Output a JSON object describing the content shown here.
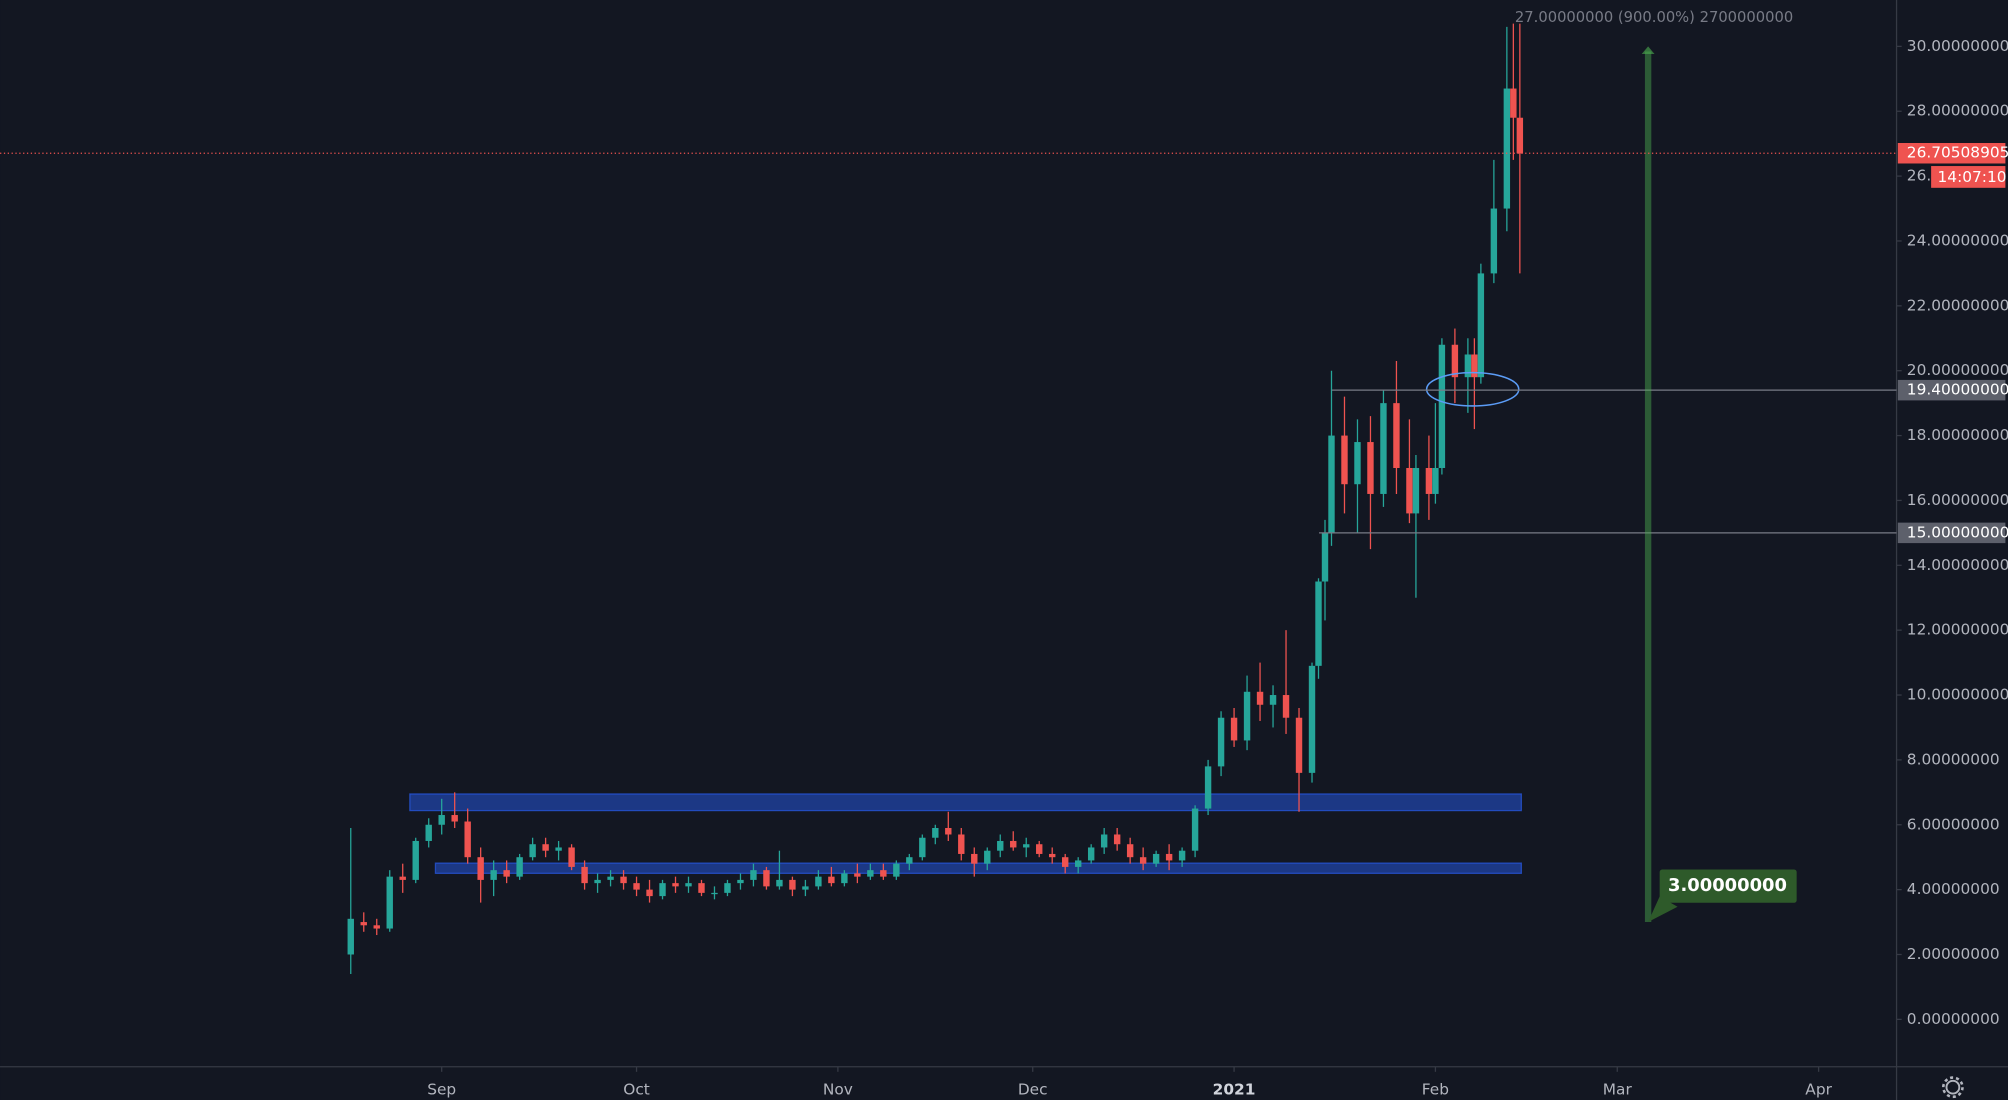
{
  "chart_data": {
    "type": "candlestick",
    "up_color": "#26a69a",
    "down_color": "#ef5350",
    "xlim": [
      -68,
      224
    ],
    "xticks": [
      {
        "value": 0,
        "label": "Sep"
      },
      {
        "value": 30,
        "label": "Oct"
      },
      {
        "value": 61,
        "label": "Nov"
      },
      {
        "value": 91,
        "label": "Dec"
      },
      {
        "value": 122,
        "label": "2021"
      },
      {
        "value": 153,
        "label": "Feb"
      },
      {
        "value": 181,
        "label": "Mar"
      },
      {
        "value": 212,
        "label": "Apr"
      }
    ],
    "ylim": [
      -1.46,
      31.43
    ],
    "yticks": [
      {
        "value": 0,
        "label": "0.00000000"
      },
      {
        "value": 2,
        "label": "2.00000000"
      },
      {
        "value": 4,
        "label": "4.00000000"
      },
      {
        "value": 6,
        "label": "6.00000000"
      },
      {
        "value": 8,
        "label": "8.00000000"
      },
      {
        "value": 10,
        "label": "10.00000000"
      },
      {
        "value": 12,
        "label": "12.00000000"
      },
      {
        "value": 14,
        "label": "14.00000000"
      },
      {
        "value": 16,
        "label": "16.00000000"
      },
      {
        "value": 18,
        "label": "18.00000000"
      },
      {
        "value": 20,
        "label": "20.00000000"
      },
      {
        "value": 22,
        "label": "22.00000000"
      },
      {
        "value": 24,
        "label": "24.00000000"
      },
      {
        "value": 26,
        "label": "26."
      },
      {
        "value": 28,
        "label": "28.00000000"
      },
      {
        "value": 30,
        "label": "30.00000000"
      }
    ],
    "x": [
      -14,
      -12,
      -10,
      -8,
      -6,
      -4,
      -2,
      0,
      2,
      4,
      6,
      8,
      10,
      12,
      14,
      16,
      18,
      20,
      22,
      24,
      26,
      28,
      30,
      32,
      34,
      36,
      38,
      40,
      42,
      44,
      46,
      48,
      50,
      52,
      54,
      56,
      58,
      60,
      62,
      64,
      66,
      68,
      70,
      72,
      74,
      76,
      78,
      80,
      82,
      84,
      86,
      88,
      90,
      92,
      94,
      96,
      98,
      100,
      102,
      104,
      106,
      108,
      110,
      112,
      114,
      116,
      118,
      120,
      122,
      124,
      126,
      128,
      130,
      132,
      134,
      135,
      136,
      137,
      139,
      141,
      143,
      145,
      147,
      149,
      150,
      152,
      153,
      154,
      156,
      158,
      159,
      160,
      162,
      164,
      165,
      166
    ],
    "open": [
      2.0,
      3.0,
      2.9,
      2.8,
      4.4,
      4.3,
      5.5,
      6.0,
      6.3,
      6.1,
      5.0,
      4.3,
      4.6,
      4.4,
      5.0,
      5.4,
      5.2,
      5.3,
      4.7,
      4.2,
      4.3,
      4.4,
      4.2,
      4.0,
      3.8,
      4.2,
      4.1,
      4.2,
      3.9,
      3.9,
      4.2,
      4.3,
      4.6,
      4.1,
      4.3,
      4.0,
      4.1,
      4.4,
      4.2,
      4.5,
      4.4,
      4.6,
      4.4,
      4.8,
      5.0,
      5.6,
      5.9,
      5.7,
      5.1,
      4.8,
      5.2,
      5.5,
      5.3,
      5.4,
      5.1,
      5.0,
      4.7,
      4.9,
      5.3,
      5.7,
      5.4,
      5.0,
      4.8,
      5.1,
      4.9,
      5.2,
      6.5,
      7.8,
      9.3,
      8.6,
      10.1,
      9.7,
      10.0,
      9.3,
      7.6,
      10.9,
      13.5,
      15.0,
      18.0,
      16.5,
      17.8,
      16.2,
      19.0,
      17.0,
      15.6,
      17.0,
      16.2,
      17.0,
      20.8,
      19.8,
      20.5,
      19.8,
      23.0,
      25.0,
      28.7,
      27.8
    ],
    "high": [
      5.9,
      3.3,
      3.1,
      4.6,
      4.8,
      5.6,
      6.2,
      6.8,
      7.0,
      6.5,
      5.3,
      4.9,
      4.9,
      5.1,
      5.6,
      5.6,
      5.5,
      5.4,
      4.9,
      4.5,
      4.6,
      4.6,
      4.4,
      4.3,
      4.3,
      4.4,
      4.4,
      4.3,
      4.1,
      4.3,
      4.5,
      4.8,
      4.7,
      5.2,
      4.4,
      4.3,
      4.6,
      4.7,
      4.6,
      4.8,
      4.8,
      4.8,
      4.9,
      5.1,
      5.7,
      6.0,
      6.4,
      5.9,
      5.3,
      5.3,
      5.7,
      5.8,
      5.6,
      5.5,
      5.3,
      5.1,
      5.0,
      5.4,
      5.9,
      5.9,
      5.6,
      5.3,
      5.2,
      5.4,
      5.3,
      6.6,
      8.0,
      9.5,
      9.6,
      10.6,
      11.0,
      10.3,
      12.0,
      9.6,
      11.0,
      13.6,
      15.4,
      20.0,
      19.2,
      18.5,
      18.6,
      19.4,
      20.3,
      18.5,
      17.4,
      18.0,
      19.0,
      21.0,
      21.3,
      21.0,
      21.0,
      23.3,
      26.5,
      30.6,
      30.7,
      30.7
    ],
    "low": [
      1.4,
      2.7,
      2.6,
      2.7,
      3.9,
      4.2,
      5.3,
      5.7,
      5.9,
      4.8,
      3.6,
      3.8,
      4.2,
      4.3,
      4.9,
      5.0,
      4.9,
      4.6,
      4.0,
      3.9,
      4.1,
      4.0,
      3.8,
      3.6,
      3.7,
      3.9,
      3.9,
      3.8,
      3.7,
      3.8,
      4.0,
      4.1,
      4.0,
      4.0,
      3.8,
      3.8,
      4.0,
      4.1,
      4.1,
      4.2,
      4.3,
      4.3,
      4.3,
      4.6,
      4.9,
      5.4,
      5.5,
      4.9,
      4.4,
      4.6,
      5.0,
      5.2,
      5.0,
      5.0,
      4.8,
      4.5,
      4.5,
      4.8,
      5.1,
      5.2,
      4.8,
      4.6,
      4.7,
      4.6,
      4.7,
      5.0,
      6.3,
      7.5,
      8.4,
      8.3,
      9.2,
      9.0,
      8.8,
      6.4,
      7.3,
      10.5,
      12.3,
      14.6,
      15.6,
      15.0,
      14.5,
      15.8,
      16.2,
      15.3,
      13.0,
      15.4,
      15.9,
      16.8,
      19.0,
      18.7,
      18.2,
      19.6,
      22.7,
      24.3,
      26.5,
      23.0
    ],
    "close": [
      3.1,
      2.9,
      2.8,
      4.4,
      4.3,
      5.5,
      6.0,
      6.3,
      6.1,
      5.0,
      4.3,
      4.6,
      4.4,
      5.0,
      5.4,
      5.2,
      5.3,
      4.7,
      4.2,
      4.3,
      4.4,
      4.2,
      4.0,
      3.8,
      4.2,
      4.1,
      4.2,
      3.9,
      3.9,
      4.2,
      4.3,
      4.6,
      4.1,
      4.3,
      4.0,
      4.1,
      4.4,
      4.2,
      4.5,
      4.4,
      4.6,
      4.4,
      4.8,
      5.0,
      5.6,
      5.9,
      5.7,
      5.1,
      4.8,
      5.2,
      5.5,
      5.3,
      5.4,
      5.1,
      5.0,
      4.7,
      4.9,
      5.3,
      5.7,
      5.4,
      5.0,
      4.8,
      5.1,
      4.9,
      5.2,
      6.5,
      7.8,
      9.3,
      8.6,
      10.1,
      9.7,
      10.0,
      9.3,
      7.6,
      10.9,
      13.5,
      15.0,
      18.0,
      16.5,
      17.8,
      16.2,
      19.0,
      17.0,
      15.6,
      17.0,
      16.2,
      17.0,
      20.8,
      19.8,
      20.5,
      19.8,
      23.0,
      25.0,
      28.7,
      27.8,
      26.7
    ],
    "last_price": 26.70508905,
    "countdown": "14:07:10",
    "levels": [
      {
        "value": 19.4,
        "label": "19.40000000"
      },
      {
        "value": 15,
        "label": "15.00000000"
      }
    ],
    "measure": {
      "from": {
        "value": 3,
        "label": "3.00000000"
      },
      "to": 30,
      "label": "27.00000000 (900.00%) 2700000000"
    }
  }
}
